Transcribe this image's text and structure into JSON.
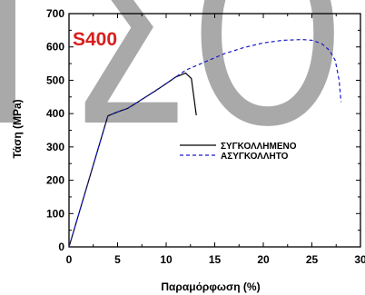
{
  "chart_data": {
    "type": "line",
    "title": "",
    "xlabel": "Παραμόρφωση (%)",
    "ylabel": "Τάση (MPa)",
    "xlim": [
      0,
      30
    ],
    "ylim": [
      0,
      700
    ],
    "xticks": [
      0,
      5,
      10,
      15,
      20,
      25,
      30
    ],
    "yticks": [
      0,
      100,
      200,
      300,
      400,
      500,
      600,
      700
    ],
    "grid": false,
    "legend_position": "center-right",
    "annotation": "S400",
    "watermark": "ΤΣΟ",
    "colors": {
      "annotation": "#d81e1e",
      "watermark": "#888888"
    },
    "series": [
      {
        "name": "ΣΥΓΚΟΛΛΗΜΕΝΟ",
        "style": "solid",
        "color": "#000000",
        "x": [
          0,
          4,
          5,
          6,
          7,
          8,
          9,
          10,
          11,
          12,
          12.6,
          13.1
        ],
        "y": [
          0,
          393,
          405,
          415,
          433,
          452,
          470,
          490,
          510,
          522,
          505,
          395
        ]
      },
      {
        "name": "ΑΣΥΓΚΟΛΛΗΤΟ",
        "style": "dashed",
        "color": "#1a1acc",
        "x": [
          0,
          4,
          5,
          6,
          8,
          10,
          12,
          14,
          16,
          18,
          20,
          22,
          24,
          25,
          26,
          26.8,
          27.4,
          27.8,
          28
        ],
        "y": [
          0,
          393,
          405,
          415,
          452,
          490,
          530,
          555,
          580,
          598,
          612,
          620,
          622,
          620,
          610,
          590,
          560,
          500,
          435
        ]
      }
    ]
  }
}
